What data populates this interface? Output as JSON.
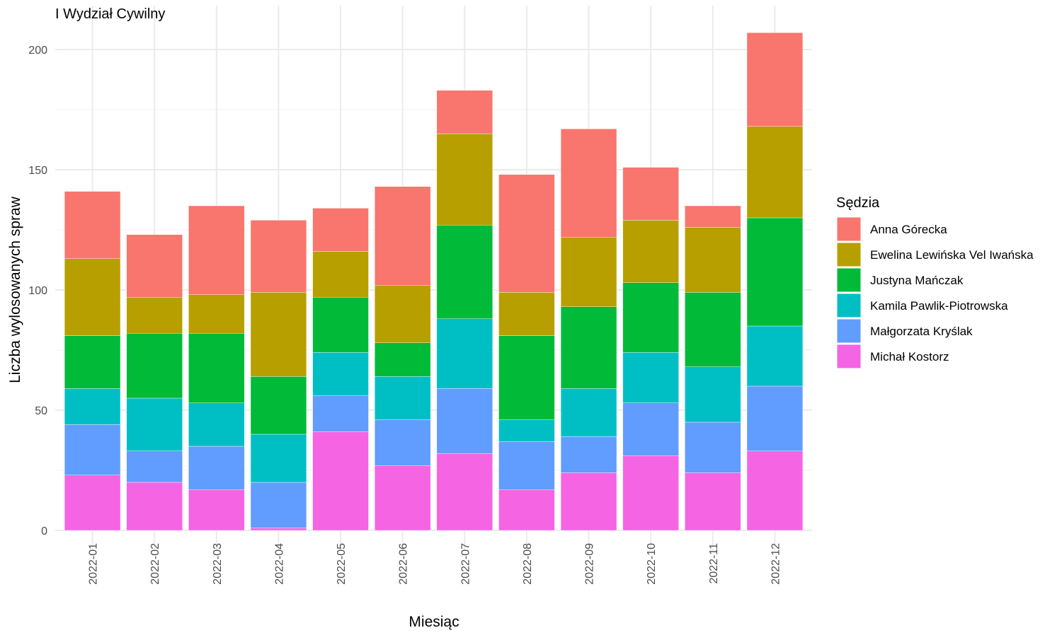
{
  "chart_data": {
    "type": "bar",
    "stacked": true,
    "title": "I Wydział Cywilny",
    "xlabel": "Miesiąc",
    "ylabel": "Liczba wylosowanych spraw",
    "ylim": [
      0,
      210
    ],
    "yticks": [
      0,
      50,
      100,
      150,
      200
    ],
    "grid": true,
    "legend_position": "right",
    "legend_title": "Sędzia",
    "categories": [
      "2022-01",
      "2022-02",
      "2022-03",
      "2022-04",
      "2022-05",
      "2022-06",
      "2022-07",
      "2022-08",
      "2022-09",
      "2022-10",
      "2022-11",
      "2022-12"
    ],
    "series": [
      {
        "name": "Anna Górecka",
        "color": "#F8766D",
        "values": [
          28,
          26,
          37,
          30,
          18,
          41,
          18,
          49,
          45,
          22,
          9,
          39
        ]
      },
      {
        "name": "Ewelina Lewińska Vel Iwańska",
        "color": "#B79F00",
        "values": [
          32,
          15,
          16,
          35,
          19,
          24,
          38,
          18,
          29,
          26,
          27,
          38
        ]
      },
      {
        "name": "Justyna Mańczak",
        "color": "#00BA38",
        "values": [
          22,
          27,
          29,
          24,
          23,
          14,
          39,
          35,
          34,
          29,
          31,
          45
        ]
      },
      {
        "name": "Kamila Pawlik-Piotrowska",
        "color": "#00BFC4",
        "values": [
          15,
          22,
          18,
          20,
          18,
          18,
          29,
          9,
          20,
          21,
          23,
          25
        ]
      },
      {
        "name": "Małgorzata Kryślak",
        "color": "#619CFF",
        "values": [
          21,
          13,
          18,
          19,
          15,
          19,
          27,
          20,
          15,
          22,
          21,
          27
        ]
      },
      {
        "name": "Michał Kostorz",
        "color": "#F564E3",
        "values": [
          23,
          20,
          17,
          1,
          41,
          27,
          32,
          17,
          24,
          31,
          24,
          33
        ]
      }
    ]
  }
}
